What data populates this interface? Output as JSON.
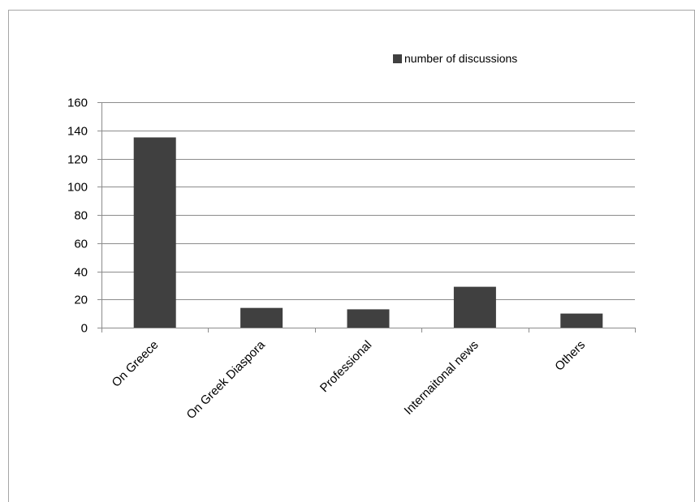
{
  "chart_data": {
    "type": "bar",
    "categories": [
      "On Greece",
      "On Greek Diaspora",
      "Professional",
      "Internaitonal news",
      "Others"
    ],
    "series": [
      {
        "name": "number of discussions",
        "values": [
          135,
          14,
          13,
          29,
          10
        ],
        "color": "#404040"
      }
    ],
    "ylim": [
      0,
      160
    ],
    "yticks": [
      0,
      20,
      40,
      60,
      80,
      100,
      120,
      140,
      160
    ],
    "grid": true,
    "legend": "top-right",
    "xlabel": "",
    "ylabel": "",
    "title": ""
  }
}
